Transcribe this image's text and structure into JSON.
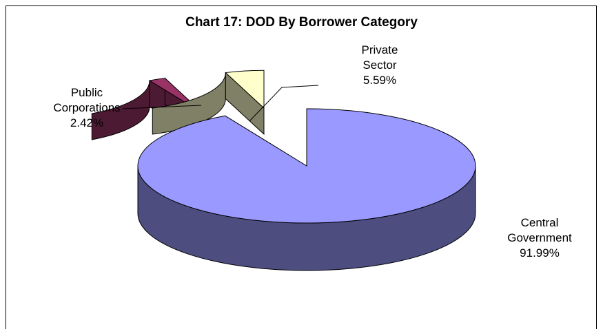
{
  "chart_data": {
    "type": "pie",
    "title": "Chart 17: DOD By Borrower Category",
    "slices": [
      {
        "name_lines": [
          "Central",
          "Government"
        ],
        "value": 91.99,
        "value_text": "91.99%",
        "color": "#9999ff",
        "side_color": "#4d4d80"
      },
      {
        "name_lines": [
          "Public",
          "Corporations"
        ],
        "value": 2.42,
        "value_text": "2.42%",
        "color": "#993366",
        "side_color": "#4d1a33"
      },
      {
        "name_lines": [
          "Private",
          "Sector"
        ],
        "value": 5.59,
        "value_text": "5.59%",
        "color": "#ffffcc",
        "side_color": "#808066"
      }
    ],
    "legend": "none",
    "exploded": true
  }
}
